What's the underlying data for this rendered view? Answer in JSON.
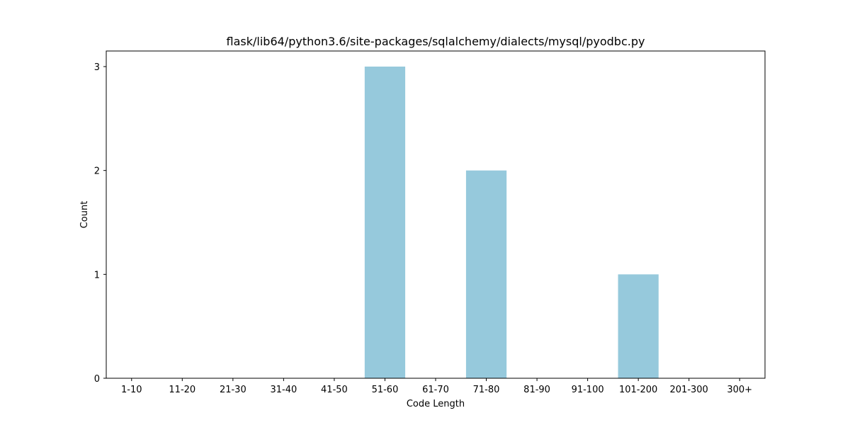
{
  "chart_data": {
    "type": "bar",
    "title": "flask/lib64/python3.6/site-packages/sqlalchemy/dialects/mysql/pyodbc.py",
    "xlabel": "Code Length",
    "ylabel": "Count",
    "categories": [
      "1-10",
      "11-20",
      "21-30",
      "31-40",
      "41-50",
      "51-60",
      "61-70",
      "71-80",
      "81-90",
      "91-100",
      "101-200",
      "201-300",
      "300+"
    ],
    "values": [
      0,
      0,
      0,
      0,
      0,
      3,
      0,
      2,
      0,
      0,
      1,
      0,
      0
    ],
    "ylim": [
      0,
      3.15
    ],
    "yticks": [
      0,
      1,
      2,
      3
    ],
    "grid": false,
    "legend": "none",
    "bar_color": "#96c9dc"
  }
}
